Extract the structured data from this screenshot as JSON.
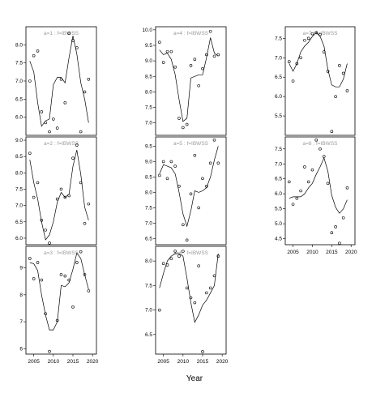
{
  "figure": {
    "xlabel": "Year"
  },
  "chart_data": [
    {
      "type": "scatter",
      "title": "a=1 : f=IBWSS",
      "xlim": [
        2003,
        2021
      ],
      "ylim": [
        5.5,
        8.5
      ],
      "yticks": [
        6.0,
        6.5,
        7.0,
        7.5,
        8.0
      ],
      "ytick_labels": [
        "6.0",
        "6.5",
        "7.0",
        "7.5",
        "8.0"
      ],
      "xticks": [],
      "xtick_labels": [],
      "points": {
        "x": [
          2004,
          2005,
          2006,
          2007,
          2008,
          2009,
          2010,
          2011,
          2012,
          2013,
          2014,
          2015,
          2016,
          2017,
          2018,
          2019
        ],
        "y": [
          7.0,
          7.7,
          7.83,
          6.15,
          5.85,
          5.6,
          5.95,
          5.7,
          7.05,
          6.4,
          8.32,
          8.12,
          7.92,
          5.6,
          6.7,
          7.05
        ]
      },
      "line": {
        "x": [
          2004,
          2005,
          2006,
          2007,
          2008,
          2009,
          2010,
          2011,
          2012,
          2013,
          2014,
          2015,
          2016,
          2017,
          2018,
          2019
        ],
        "y": [
          7.55,
          7.25,
          6.4,
          5.75,
          5.9,
          5.95,
          6.9,
          7.1,
          7.1,
          6.95,
          7.65,
          8.25,
          7.75,
          6.95,
          6.5,
          5.85
        ]
      }
    },
    {
      "type": "scatter",
      "title": "a=2 : f=IBWSS",
      "xlim": [
        2003,
        2021
      ],
      "ylim": [
        5.8,
        9.1
      ],
      "yticks": [
        6.0,
        6.5,
        7.0,
        7.5,
        8.0,
        8.5,
        9.0
      ],
      "ytick_labels": [
        "6.0",
        "6.5",
        "7.0",
        "7.5",
        "8.0",
        "8.5",
        "9.0"
      ],
      "xticks": [],
      "xtick_labels": [],
      "points": {
        "x": [
          2004,
          2005,
          2006,
          2007,
          2008,
          2009,
          2011,
          2012,
          2013,
          2014,
          2015,
          2016,
          2017,
          2018,
          2019
        ],
        "y": [
          8.6,
          7.25,
          7.7,
          6.55,
          6.25,
          5.85,
          7.2,
          7.5,
          7.25,
          7.3,
          8.45,
          8.85,
          7.7,
          6.45,
          7.05
        ]
      },
      "line": {
        "x": [
          2004,
          2005,
          2006,
          2007,
          2008,
          2009,
          2010,
          2011,
          2012,
          2013,
          2014,
          2015,
          2016,
          2017,
          2018,
          2019
        ],
        "y": [
          8.4,
          7.7,
          7.2,
          6.5,
          5.95,
          6.1,
          6.5,
          7.1,
          7.4,
          7.25,
          7.35,
          8.2,
          8.7,
          7.95,
          6.95,
          6.55
        ]
      }
    },
    {
      "type": "scatter",
      "title": "a=3 : f=IBWSS",
      "xlim": [
        2003,
        2021
      ],
      "ylim": [
        5.8,
        9.8
      ],
      "yticks": [
        6,
        7,
        8,
        9
      ],
      "ytick_labels": [
        "6",
        "7",
        "8",
        "9"
      ],
      "xticks": [
        2005,
        2010,
        2015,
        2020
      ],
      "xtick_labels": [
        "2005",
        "2010",
        "2015",
        "2020"
      ],
      "points": {
        "x": [
          2004,
          2005,
          2006,
          2007,
          2008,
          2009,
          2011,
          2012,
          2013,
          2014,
          2015,
          2016,
          2017,
          2018,
          2019
        ],
        "y": [
          9.35,
          8.6,
          9.2,
          8.55,
          7.3,
          5.9,
          7.05,
          8.75,
          8.7,
          8.55,
          7.55,
          9.2,
          9.6,
          8.75,
          8.15
        ]
      },
      "line": {
        "x": [
          2004,
          2005,
          2006,
          2007,
          2008,
          2009,
          2010,
          2011,
          2012,
          2013,
          2014,
          2015,
          2016,
          2017,
          2018,
          2019
        ],
        "y": [
          9.2,
          9.15,
          8.9,
          8.0,
          7.25,
          6.7,
          6.7,
          7.0,
          8.35,
          8.3,
          8.45,
          8.95,
          9.55,
          9.35,
          8.75,
          8.2
        ]
      }
    },
    {
      "type": "scatter",
      "title": "a=4 : f=IBWSS",
      "xlim": [
        2003,
        2021
      ],
      "ylim": [
        6.6,
        10.1
      ],
      "yticks": [
        7.0,
        7.5,
        8.0,
        8.5,
        9.0,
        9.5,
        10.0
      ],
      "ytick_labels": [
        "7.0",
        "7.5",
        "8.0",
        "8.5",
        "9.0",
        "9.5",
        "10.0"
      ],
      "xticks": [],
      "xtick_labels": [],
      "points": {
        "x": [
          2004,
          2005,
          2006,
          2007,
          2008,
          2009,
          2010,
          2011,
          2012,
          2013,
          2014,
          2015,
          2016,
          2017,
          2018,
          2019
        ],
        "y": [
          9.6,
          8.95,
          9.3,
          9.3,
          8.8,
          7.15,
          6.85,
          6.95,
          8.85,
          9.05,
          8.2,
          8.75,
          9.2,
          9.95,
          9.15,
          9.2
        ]
      },
      "line": {
        "x": [
          2004,
          2005,
          2006,
          2007,
          2008,
          2009,
          2010,
          2011,
          2012,
          2013,
          2014,
          2015,
          2016,
          2017,
          2018,
          2019
        ],
        "y": [
          9.35,
          9.2,
          9.25,
          9.05,
          8.55,
          7.75,
          7.05,
          7.15,
          8.45,
          8.5,
          8.55,
          8.55,
          9.1,
          9.75,
          9.25,
          9.15
        ]
      }
    },
    {
      "type": "scatter",
      "title": "a=5 : f=IBWSS",
      "xlim": [
        2003,
        2021
      ],
      "ylim": [
        6.3,
        9.8
      ],
      "yticks": [
        6.5,
        7.0,
        7.5,
        8.0,
        8.5,
        9.0,
        9.5
      ],
      "ytick_labels": [
        "6.5",
        "7.0",
        "7.5",
        "8.0",
        "8.5",
        "9.0",
        "9.5"
      ],
      "xticks": [],
      "xtick_labels": [],
      "points": {
        "x": [
          2004,
          2005,
          2006,
          2007,
          2008,
          2009,
          2010,
          2011,
          2012,
          2013,
          2014,
          2015,
          2016,
          2017,
          2018,
          2019
        ],
        "y": [
          8.55,
          9.0,
          8.45,
          9.0,
          8.85,
          8.2,
          6.95,
          6.45,
          7.95,
          9.2,
          7.5,
          8.45,
          8.2,
          8.95,
          9.7,
          8.95
        ]
      },
      "line": {
        "x": [
          2004,
          2005,
          2006,
          2007,
          2008,
          2009,
          2010,
          2011,
          2012,
          2013,
          2014,
          2015,
          2016,
          2017,
          2018,
          2019
        ],
        "y": [
          8.6,
          8.9,
          8.85,
          8.8,
          8.6,
          8.0,
          7.3,
          6.9,
          7.4,
          8.05,
          8.0,
          8.05,
          8.15,
          8.5,
          9.05,
          9.5
        ]
      }
    },
    {
      "type": "scatter",
      "title": "a=6 : f=IBWSS",
      "xlim": [
        2003,
        2021
      ],
      "ylim": [
        6.1,
        8.3
      ],
      "yticks": [
        6.5,
        7.0,
        7.5,
        8.0
      ],
      "ytick_labels": [
        "6.5",
        "7.0",
        "7.5",
        "8.0"
      ],
      "xticks": [
        2005,
        2010,
        2015,
        2020
      ],
      "xtick_labels": [
        "2005",
        "2010",
        "2015",
        "2020"
      ],
      "points": {
        "x": [
          2004,
          2005,
          2006,
          2007,
          2008,
          2009,
          2010,
          2011,
          2012,
          2013,
          2014,
          2015,
          2016,
          2017,
          2018,
          2019
        ],
        "y": [
          7.0,
          7.95,
          7.92,
          8.05,
          8.2,
          8.1,
          8.2,
          7.45,
          7.25,
          7.15,
          7.9,
          6.15,
          7.35,
          7.45,
          7.7,
          8.1
        ]
      },
      "line": {
        "x": [
          2004,
          2005,
          2006,
          2007,
          2008,
          2009,
          2010,
          2011,
          2012,
          2013,
          2014,
          2015,
          2016,
          2017,
          2018,
          2019
        ],
        "y": [
          7.45,
          7.75,
          8.0,
          8.1,
          8.15,
          8.15,
          8.1,
          7.65,
          7.15,
          6.75,
          6.9,
          7.1,
          7.2,
          7.35,
          7.5,
          8.15
        ]
      }
    },
    {
      "type": "scatter",
      "title": "a=7 : f=IBWSS",
      "xlim": [
        2003,
        2021
      ],
      "ylim": [
        5.0,
        7.8
      ],
      "yticks": [
        5.5,
        6.0,
        6.5,
        7.0,
        7.5
      ],
      "ytick_labels": [
        "5.5",
        "6.0",
        "6.5",
        "7.0",
        "7.5"
      ],
      "xticks": [],
      "xtick_labels": [],
      "points": {
        "x": [
          2004,
          2005,
          2006,
          2007,
          2008,
          2009,
          2010,
          2011,
          2012,
          2013,
          2014,
          2015,
          2016,
          2017,
          2018,
          2019
        ],
        "y": [
          6.9,
          6.4,
          6.85,
          7.0,
          7.45,
          7.5,
          7.62,
          7.65,
          7.6,
          7.15,
          6.65,
          5.1,
          6.0,
          6.8,
          6.6,
          6.15
        ]
      },
      "line": {
        "x": [
          2004,
          2005,
          2006,
          2007,
          2008,
          2009,
          2010,
          2011,
          2012,
          2013,
          2014,
          2015,
          2016,
          2017,
          2018,
          2019
        ],
        "y": [
          6.85,
          6.65,
          6.85,
          7.15,
          7.3,
          7.4,
          7.55,
          7.65,
          7.55,
          7.3,
          6.7,
          6.3,
          6.25,
          6.25,
          6.45,
          6.85
        ]
      }
    },
    {
      "type": "scatter",
      "title": "a=8 : f=IBWSS",
      "xlim": [
        2003,
        2021
      ],
      "ylim": [
        4.3,
        7.9
      ],
      "yticks": [
        4.5,
        5.0,
        5.5,
        6.0,
        6.5,
        7.0,
        7.5
      ],
      "ytick_labels": [
        "4.5",
        "5.0",
        "5.5",
        "6.0",
        "6.5",
        "7.0",
        "7.5"
      ],
      "xticks": [
        2005,
        2010,
        2015,
        2020
      ],
      "xtick_labels": [
        "2005",
        "2010",
        "2015",
        "2020"
      ],
      "points": {
        "x": [
          2004,
          2005,
          2006,
          2007,
          2008,
          2009,
          2010,
          2011,
          2012,
          2013,
          2014,
          2015,
          2016,
          2017,
          2018,
          2019
        ],
        "y": [
          6.4,
          5.65,
          5.85,
          6.1,
          6.9,
          6.4,
          6.8,
          7.8,
          7.5,
          7.25,
          6.35,
          4.7,
          4.9,
          4.35,
          5.2,
          6.2
        ]
      },
      "line": {
        "x": [
          2004,
          2005,
          2006,
          2007,
          2008,
          2009,
          2010,
          2011,
          2012,
          2013,
          2014,
          2015,
          2016,
          2017,
          2018,
          2019
        ],
        "y": [
          5.85,
          5.9,
          5.9,
          5.9,
          6.0,
          6.2,
          6.35,
          6.65,
          6.9,
          7.2,
          6.75,
          5.95,
          5.55,
          5.35,
          5.5,
          5.8
        ]
      }
    }
  ]
}
